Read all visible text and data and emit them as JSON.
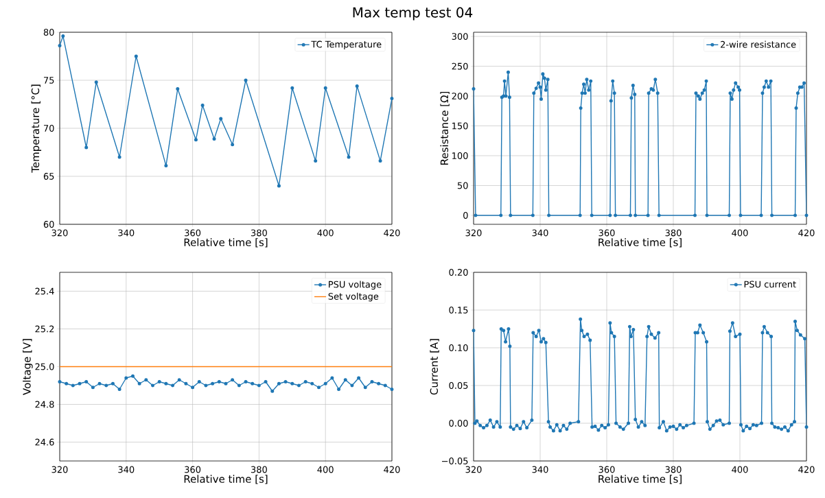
{
  "chart_data": [
    {
      "type": "line",
      "title": "Max temp test 04",
      "xlabel": "Relative time [s]",
      "ylabel": "Temperature [°C]",
      "xlim": [
        320,
        420
      ],
      "ylim": [
        60,
        80
      ],
      "xticks": [
        320,
        340,
        360,
        380,
        400,
        420
      ],
      "yticks": [
        60,
        65,
        70,
        75,
        80
      ],
      "grid": true,
      "legend": "top right",
      "marker": "circle",
      "series": [
        {
          "name": "TC Temperature",
          "color": "#1f77b4",
          "x": [
            320,
            321,
            328,
            331,
            338,
            343,
            352,
            355.5,
            361,
            363,
            366.5,
            368.5,
            372,
            376,
            386,
            390,
            397,
            400,
            407,
            409.5,
            416.5,
            420
          ],
          "values": [
            78.6,
            79.6,
            68.0,
            74.8,
            67.0,
            77.5,
            66.1,
            74.1,
            68.8,
            72.4,
            68.9,
            71.0,
            68.3,
            75.0,
            64.0,
            74.2,
            66.6,
            74.2,
            67.0,
            74.4,
            66.6,
            73.1
          ]
        }
      ]
    },
    {
      "type": "line",
      "xlabel": "Relative time [s]",
      "ylabel": "Resistance [Ω]",
      "xlim": [
        320,
        420
      ],
      "ylim": [
        -15,
        307
      ],
      "xticks": [
        320,
        340,
        360,
        380,
        400,
        420
      ],
      "yticks": [
        0,
        50,
        100,
        150,
        200,
        250,
        300
      ],
      "grid": true,
      "legend": "top right",
      "marker": "circle",
      "series": [
        {
          "name": "2-wire resistance",
          "color": "#1f77b4",
          "x": [
            320,
            320.6,
            328.2,
            328.5,
            329.0,
            329.3,
            329.7,
            330.4,
            330.8,
            331.1,
            337.8,
            338.1,
            338.8,
            339.5,
            340.0,
            340.3,
            340.8,
            341.3,
            341.7,
            342.3,
            342.6,
            352.0,
            352.2,
            352.6,
            353.1,
            353.5,
            354.0,
            354.6,
            355.2,
            355.5,
            361.0,
            361.3,
            361.8,
            362.3,
            362.6,
            367.1,
            367.4,
            367.9,
            368.4,
            368.6,
            372.4,
            372.6,
            373.4,
            374.0,
            374.6,
            375.3,
            375.7,
            386.5,
            386.8,
            387.5,
            388.0,
            388.7,
            389.3,
            389.9,
            390.1,
            396.8,
            397.1,
            397.6,
            398.1,
            398.7,
            399.5,
            399.9,
            400.2,
            406.4,
            406.8,
            407.3,
            407.9,
            408.6,
            409.3,
            409.6,
            416.6,
            416.9,
            417.4,
            418.0,
            418.6,
            419.3,
            420
          ],
          "values": [
            212,
            0,
            0,
            198,
            200,
            225,
            200,
            240,
            198,
            0,
            0,
            205,
            213,
            222,
            215,
            195,
            237,
            230,
            210,
            228,
            0,
            0,
            180,
            205,
            220,
            205,
            228,
            210,
            225,
            0,
            0,
            192,
            225,
            205,
            0,
            0,
            197,
            218,
            203,
            0,
            0,
            205,
            212,
            210,
            228,
            205,
            0,
            0,
            205,
            200,
            195,
            205,
            210,
            225,
            0,
            0,
            205,
            195,
            210,
            222,
            215,
            210,
            0,
            0,
            205,
            215,
            225,
            215,
            225,
            0,
            0,
            180,
            205,
            215,
            215,
            222,
            0
          ]
        }
      ]
    },
    {
      "type": "line",
      "xlabel": "Relative time [s]",
      "ylabel": "Voltage [V]",
      "xlim": [
        320,
        420
      ],
      "ylim": [
        24.5,
        25.5
      ],
      "xticks": [
        320,
        340,
        360,
        380,
        400,
        420
      ],
      "yticks": [
        24.6,
        24.8,
        {
          "value": 25.0,
          "label": "25.0"
        },
        25.2,
        25.4
      ],
      "grid": true,
      "legend": "top right",
      "marker": "circle",
      "series": [
        {
          "name": "PSU voltage",
          "color": "#1f77b4",
          "x": [
            320,
            322,
            324,
            326,
            328,
            330,
            332,
            334,
            336,
            338,
            340,
            342,
            344,
            346,
            348,
            350,
            352,
            354,
            356,
            358,
            360,
            362,
            364,
            366,
            368,
            370,
            372,
            374,
            376,
            378,
            380,
            382,
            384,
            386,
            388,
            390,
            392,
            394,
            396,
            398,
            400,
            402,
            404,
            406,
            408,
            410,
            412,
            414,
            416,
            418,
            420
          ],
          "values": [
            24.92,
            24.91,
            24.9,
            24.91,
            24.92,
            24.89,
            24.91,
            24.9,
            24.91,
            24.88,
            24.94,
            24.95,
            24.91,
            24.93,
            24.9,
            24.92,
            24.91,
            24.9,
            24.93,
            24.91,
            24.89,
            24.92,
            24.9,
            24.91,
            24.92,
            24.91,
            24.93,
            24.9,
            24.92,
            24.91,
            24.9,
            24.92,
            24.87,
            24.91,
            24.92,
            24.91,
            24.9,
            24.92,
            24.91,
            24.89,
            24.91,
            24.94,
            24.88,
            24.93,
            24.9,
            24.94,
            24.89,
            24.92,
            24.91,
            24.9,
            24.88
          ]
        },
        {
          "name": "Set voltage",
          "color": "#ff7f0e",
          "marker": "none",
          "x": [
            320,
            420
          ],
          "values": [
            25.0,
            25.0
          ]
        }
      ]
    },
    {
      "type": "line",
      "xlabel": "Relative time [s]",
      "ylabel": "Current [A]",
      "xlim": [
        320,
        420
      ],
      "ylim": [
        -0.05,
        0.2
      ],
      "xticks": [
        320,
        340,
        360,
        380,
        400,
        420
      ],
      "yticks": [
        {
          "value": -0.05,
          "label": "−0.05"
        },
        {
          "value": 0,
          "label": "0.00"
        },
        {
          "value": 0.05,
          "label": "0.05"
        },
        {
          "value": 0.1,
          "label": "0.10"
        },
        {
          "value": 0.15,
          "label": "0.15"
        },
        {
          "value": 0.2,
          "label": "0.20"
        }
      ],
      "grid": true,
      "legend": "top right",
      "marker": "circle",
      "series": [
        {
          "name": "PSU current",
          "color": "#1f77b4",
          "x": [
            320,
            320.4,
            321,
            322,
            323,
            324,
            325,
            326,
            327,
            328.0,
            328.3,
            329,
            329.6,
            330.5,
            330.9,
            331.1,
            332,
            333,
            334,
            335,
            336,
            337.5,
            337.9,
            338.8,
            339.6,
            340.3,
            341.0,
            341.7,
            342.5,
            343,
            344,
            345,
            346,
            347,
            348,
            349,
            351.5,
            352.1,
            352.5,
            353.2,
            354.2,
            355.0,
            355.6,
            356.5,
            357.5,
            358.5,
            359.5,
            360.5,
            361.0,
            361.4,
            362.3,
            362.8,
            364,
            365,
            366.5,
            366.9,
            367.3,
            368.0,
            368.6,
            369.5,
            370.5,
            371.5,
            372.1,
            372.6,
            373.4,
            374.5,
            375.6,
            375.8,
            377,
            378,
            379,
            380,
            381,
            382,
            383,
            384,
            386.2,
            386.6,
            387.3,
            388.0,
            389.0,
            390.0,
            390.2,
            391,
            392,
            393,
            394,
            395,
            396.8,
            397.0,
            397.8,
            398.7,
            400.0,
            400.3,
            401,
            402,
            403,
            404,
            405,
            406.5,
            406.8,
            407.3,
            408.3,
            409.4,
            409.6,
            410.5,
            411.5,
            412.5,
            413.5,
            414.5,
            415.5,
            416.4,
            416.6,
            417.2,
            418.2,
            419.5,
            420
          ],
          "values": [
            0.123,
            0.0,
            0.003,
            -0.003,
            -0.006,
            -0.003,
            0.004,
            -0.005,
            0.002,
            -0.005,
            0.125,
            0.123,
            0.108,
            0.125,
            0.102,
            -0.005,
            -0.008,
            -0.003,
            -0.007,
            0.002,
            -0.006,
            0.004,
            0.12,
            0.115,
            0.123,
            0.108,
            0.112,
            0.107,
            0.002,
            -0.005,
            -0.01,
            -0.002,
            -0.01,
            -0.003,
            -0.008,
            0.0,
            0.002,
            0.138,
            0.123,
            0.115,
            0.118,
            0.11,
            -0.005,
            -0.004,
            -0.009,
            -0.003,
            -0.006,
            -0.002,
            0.133,
            0.12,
            0.115,
            0.0,
            -0.005,
            -0.008,
            0.0,
            0.128,
            0.115,
            0.124,
            0.005,
            -0.005,
            0.002,
            -0.003,
            0.115,
            0.128,
            0.118,
            0.113,
            0.12,
            -0.006,
            0.002,
            -0.01,
            -0.005,
            -0.004,
            -0.008,
            -0.002,
            -0.006,
            -0.003,
            0.0,
            0.12,
            0.12,
            0.13,
            0.12,
            0.108,
            0.002,
            -0.008,
            -0.003,
            0.003,
            0.004,
            -0.002,
            0.0,
            0.122,
            0.133,
            0.115,
            0.118,
            -0.002,
            -0.01,
            -0.004,
            -0.007,
            -0.002,
            -0.003,
            0.0,
            0.12,
            0.128,
            0.12,
            0.115,
            0.0,
            -0.005,
            -0.006,
            -0.008,
            -0.005,
            -0.01,
            -0.002,
            0.002,
            0.135,
            0.123,
            0.117,
            0.112,
            -0.005
          ]
        }
      ]
    }
  ]
}
